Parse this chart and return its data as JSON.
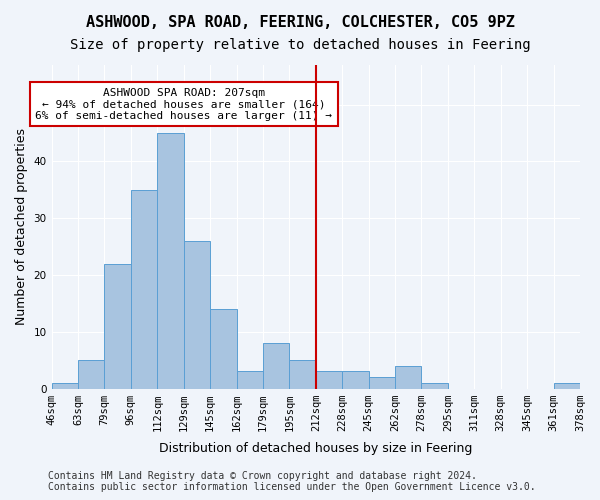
{
  "title": "ASHWOOD, SPA ROAD, FEERING, COLCHESTER, CO5 9PZ",
  "subtitle": "Size of property relative to detached houses in Feering",
  "xlabel": "Distribution of detached houses by size in Feering",
  "ylabel": "Number of detached properties",
  "bar_values": [
    1,
    5,
    22,
    35,
    45,
    26,
    14,
    3,
    8,
    5,
    3,
    3,
    2,
    4,
    1,
    0,
    0,
    0,
    0,
    1
  ],
  "bar_labels": [
    "46sqm",
    "63sqm",
    "79sqm",
    "96sqm",
    "112sqm",
    "129sqm",
    "145sqm",
    "162sqm",
    "179sqm",
    "195sqm",
    "212sqm",
    "228sqm",
    "245sqm",
    "262sqm",
    "278sqm",
    "295sqm",
    "311sqm",
    "328sqm",
    "345sqm",
    "361sqm",
    "378sqm"
  ],
  "bar_color": "#a8c4e0",
  "bar_edge_color": "#5a9fd4",
  "annotation_text": "ASHWOOD SPA ROAD: 207sqm\n← 94% of detached houses are smaller (164)\n6% of semi-detached houses are larger (11) →",
  "annotation_box_color": "#ffffff",
  "annotation_box_edge_color": "#cc0000",
  "vline_color": "#cc0000",
  "footer_text": "Contains HM Land Registry data © Crown copyright and database right 2024.\nContains public sector information licensed under the Open Government Licence v3.0.",
  "ylim": [
    0,
    57
  ],
  "background_color": "#f0f4fa",
  "grid_color": "#ffffff",
  "title_fontsize": 11,
  "subtitle_fontsize": 10,
  "axis_fontsize": 9,
  "tick_fontsize": 7.5,
  "footer_fontsize": 7
}
